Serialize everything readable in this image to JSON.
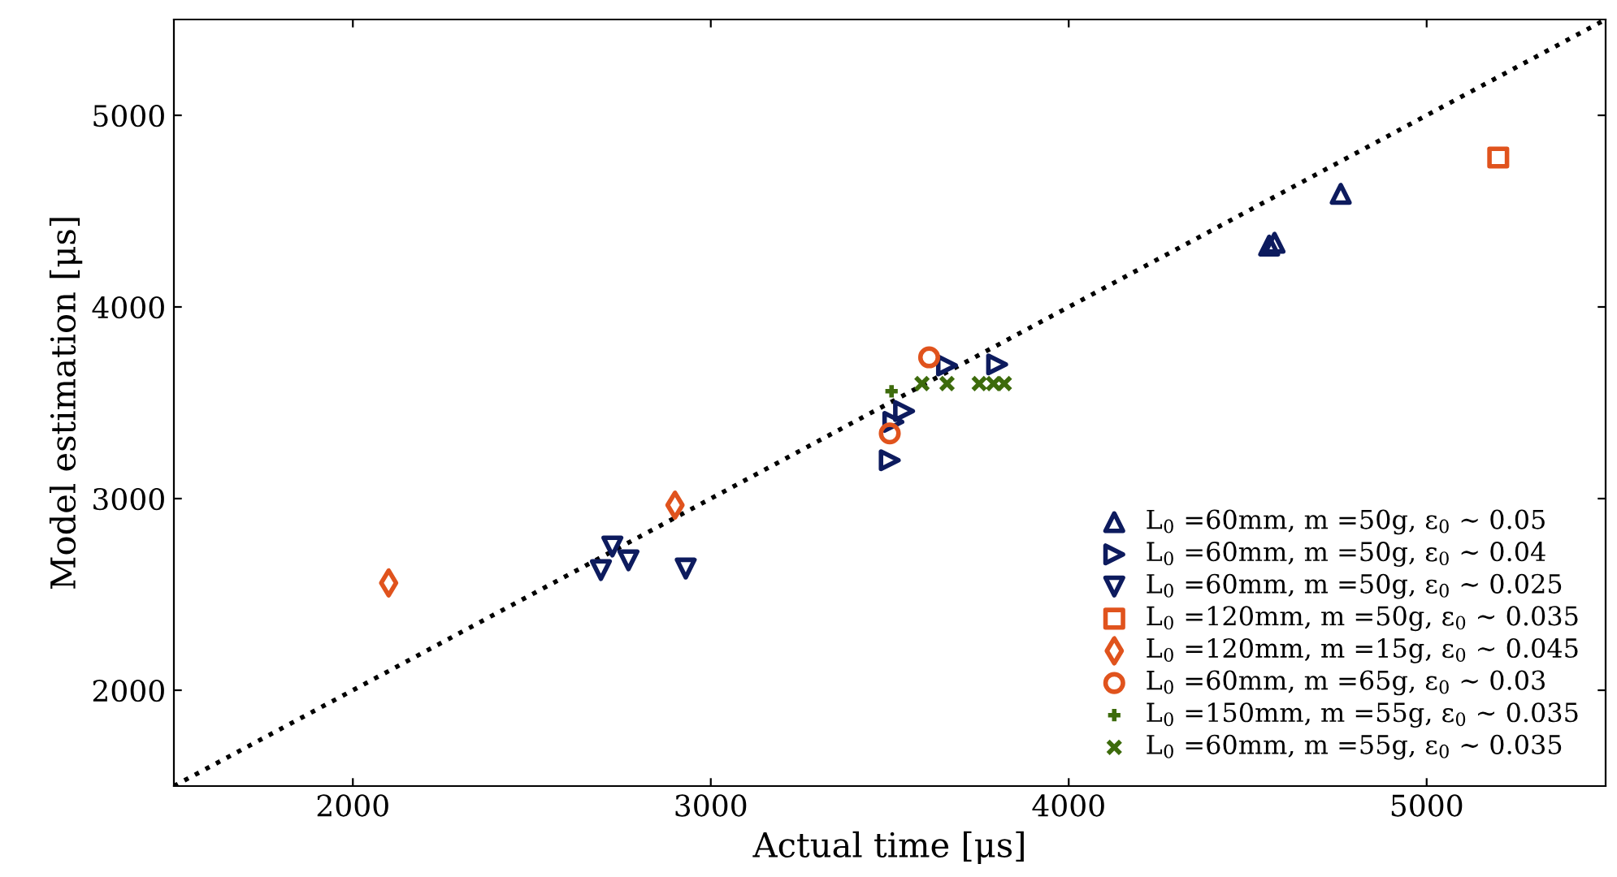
{
  "chart_data": {
    "type": "scatter",
    "xlabel": "Actual time [μs]",
    "ylabel": "Model estimation [μs]",
    "xlim": [
      1500,
      5500
    ],
    "ylim": [
      1500,
      5500
    ],
    "xticks": [
      2000,
      3000,
      4000,
      5000
    ],
    "yticks": [
      2000,
      3000,
      4000,
      5000
    ],
    "grid": false,
    "legend": "bottom right",
    "series": [
      {
        "name": "L$_{0}$ =60mm, m =50g, ε$_{0}$ ∼ 0.05",
        "color": "#0d1b5e",
        "marker": "triangle",
        "x": [
          4560,
          4575,
          4760
        ],
        "values": [
          4320,
          4335,
          4590
        ]
      },
      {
        "name": "L$_{0}$ =60mm, m =50g, ε$_{0}$ ∼ 0.04",
        "color": "#0d1b5e",
        "marker": "triangle-right",
        "x": [
          3660,
          3800,
          3540,
          3510,
          3500
        ],
        "values": [
          3695,
          3700,
          3457,
          3400,
          3200
        ]
      },
      {
        "name": "L$_{0}$ =60mm, m =50g, ε$_{0}$ ∼ 0.025",
        "color": "#0d1b5e",
        "marker": "triangle-down",
        "x": [
          2725,
          2693,
          2770,
          2930
        ],
        "values": [
          2750,
          2627,
          2678,
          2635
        ]
      },
      {
        "name": "L$_{0}$ =120mm, m =50g, ε$_{0}$ ∼ 0.035",
        "color": "#e0531d",
        "marker": "square",
        "x": [
          5200
        ],
        "values": [
          4780
        ]
      },
      {
        "name": "L$_{0}$ =120mm, m =15g, ε$_{0}$ ∼ 0.045",
        "color": "#e0531d",
        "marker": "diamond",
        "x": [
          2100,
          2900
        ],
        "values": [
          2560,
          2966
        ]
      },
      {
        "name": "L$_{0}$ =60mm, m =65g, ε$_{0}$ ∼ 0.03",
        "color": "#e0531d",
        "marker": "circle",
        "x": [
          3610,
          3500
        ],
        "values": [
          3737,
          3340
        ]
      },
      {
        "name": "L$_{0}$ =150mm, m =55g, ε$_{0}$ ∼ 0.035",
        "color": "#3d6b0c",
        "marker": "plus",
        "x": [
          3505
        ],
        "values": [
          3560
        ]
      },
      {
        "name": "L$_{0}$ =60mm, m =55g, ε$_{0}$ ∼ 0.035",
        "color": "#3d6b0c",
        "marker": "cross",
        "x": [
          3590,
          3660,
          3750,
          3790,
          3820
        ],
        "values": [
          3600,
          3600,
          3600,
          3600,
          3600
        ]
      },
      {
        "type": "line",
        "color": "#000000",
        "line_style": "dotted",
        "marker": "none",
        "x": [
          1500,
          5500
        ],
        "values": [
          1500,
          5500
        ]
      }
    ]
  }
}
